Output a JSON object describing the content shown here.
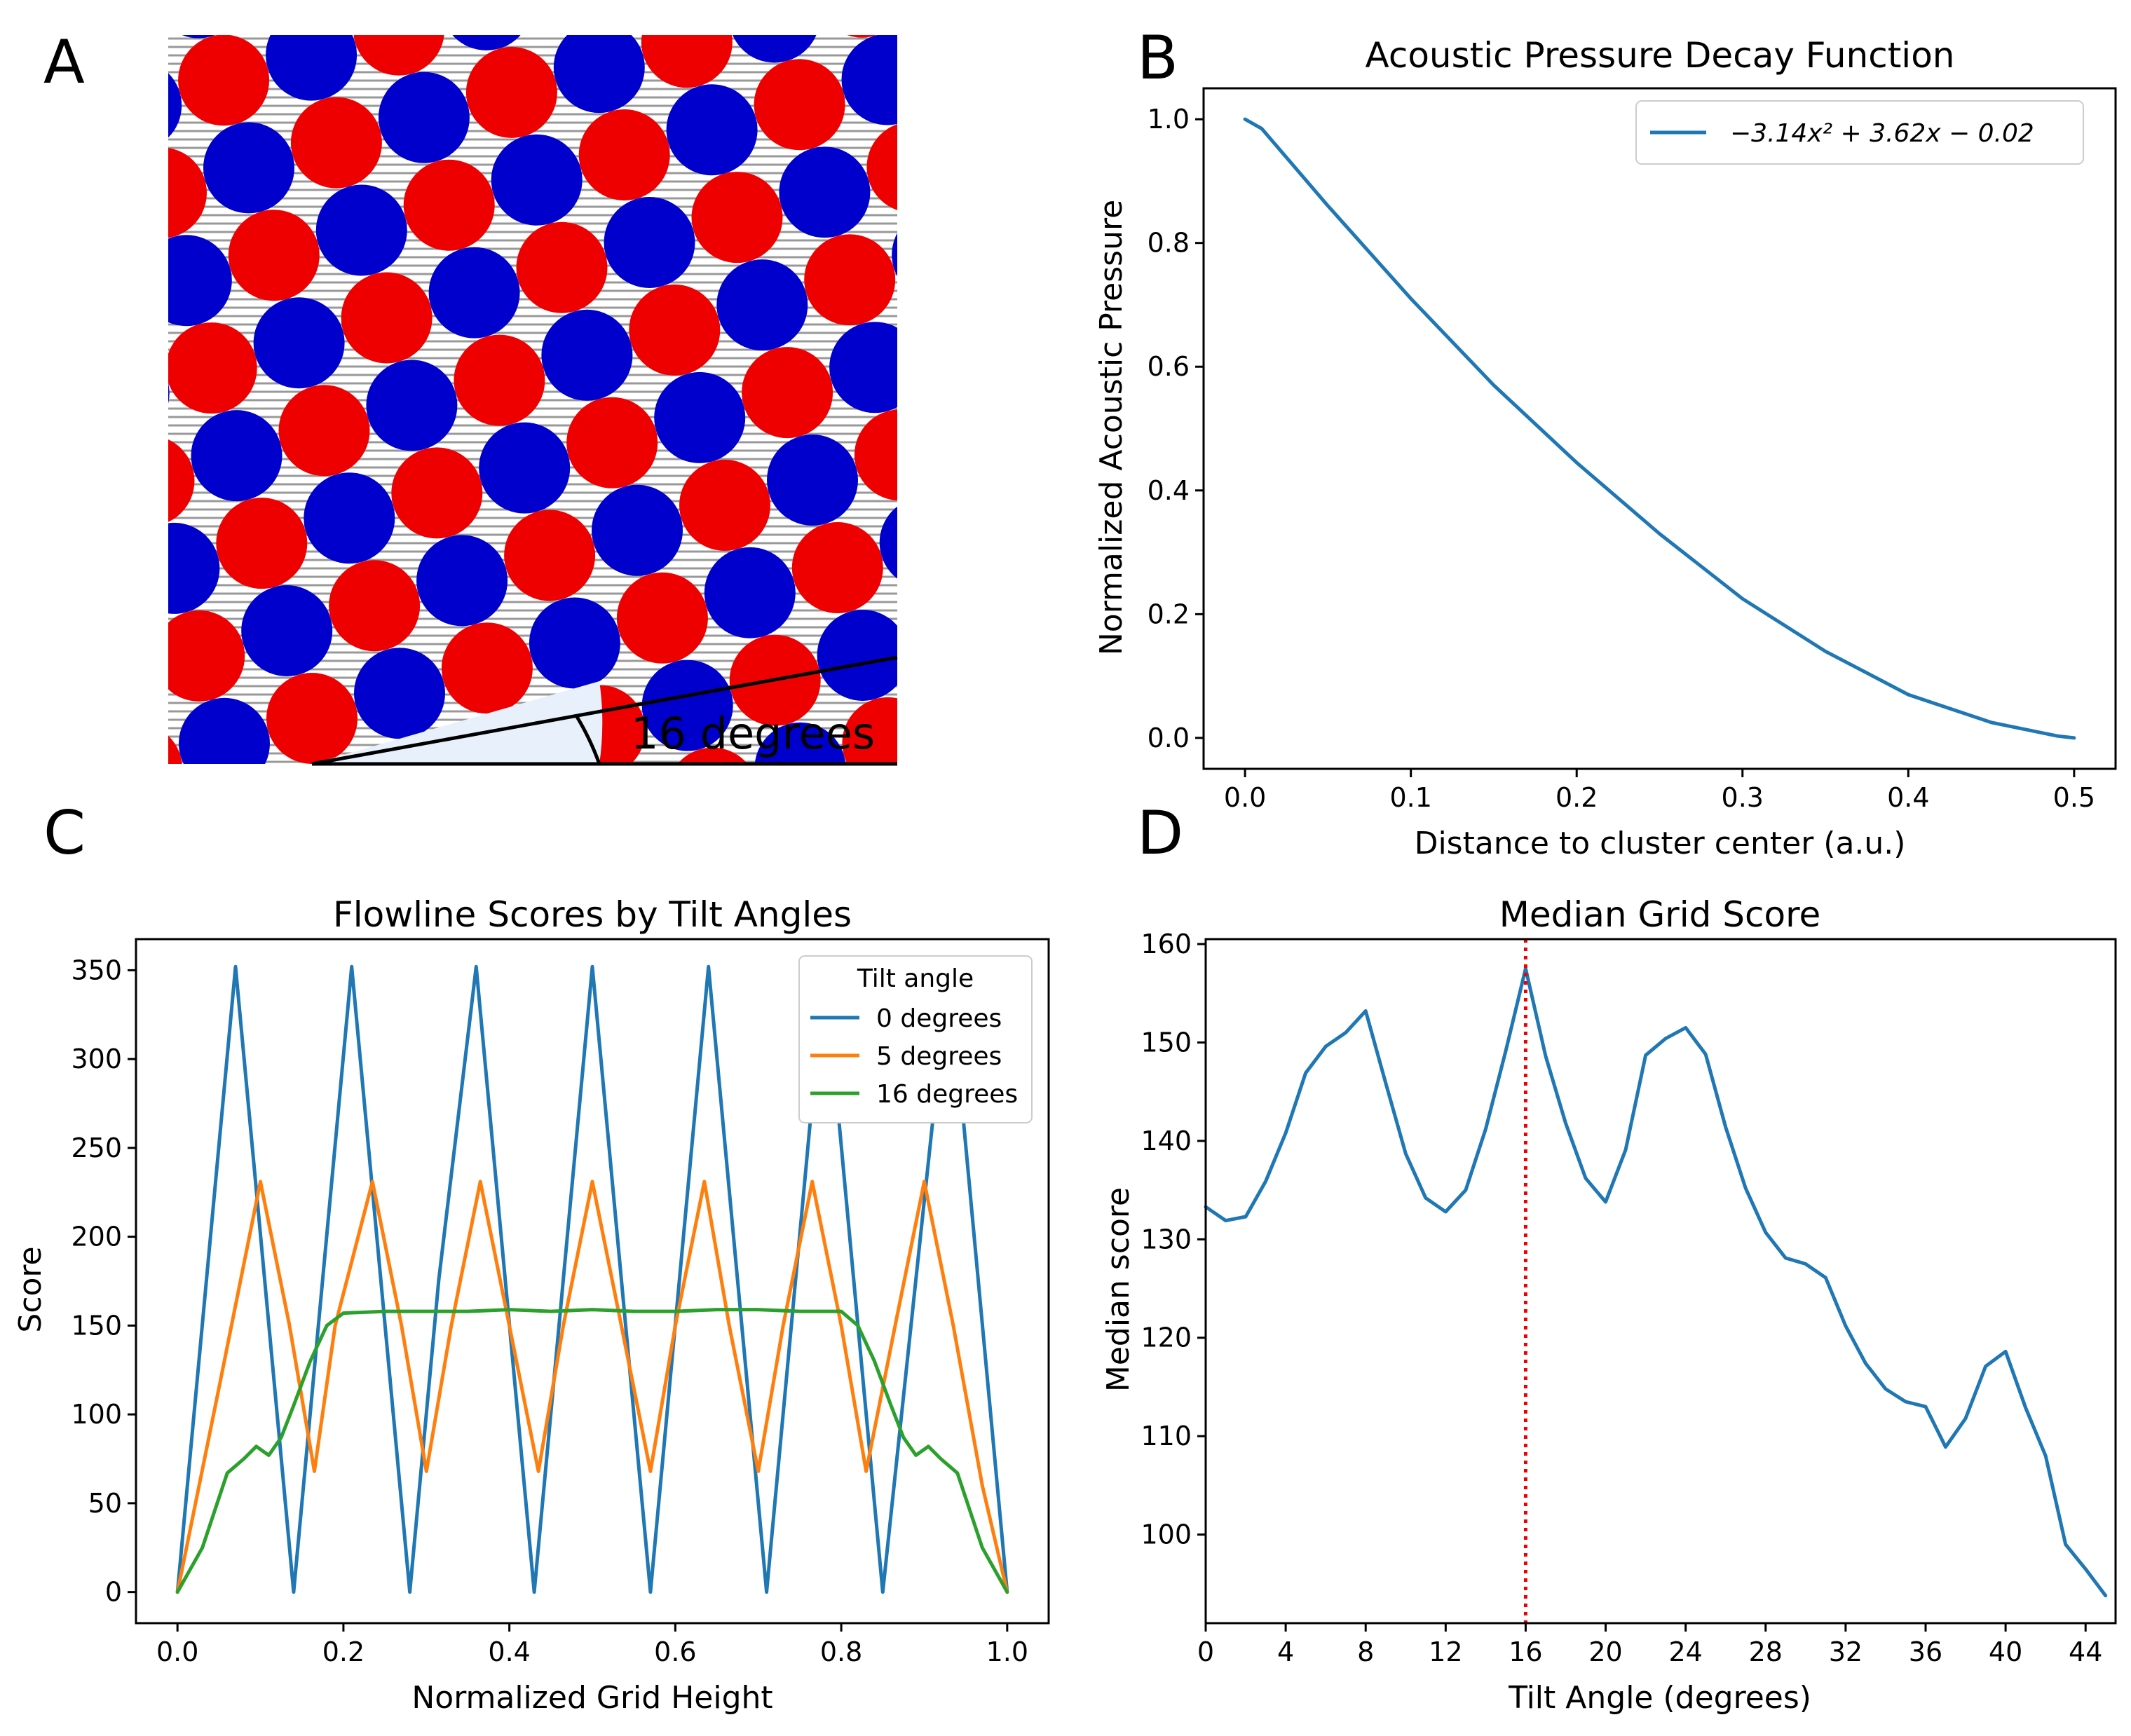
{
  "panels": {
    "A": {
      "letter": "A",
      "angle_label": "16 degrees",
      "angle_degrees": 16,
      "colors": {
        "red": "#ee0000",
        "blue": "#0000cc",
        "lines": "#999999",
        "wedge": "#e8f1fb"
      }
    },
    "B": {
      "letter": "B"
    },
    "C": {
      "letter": "C"
    },
    "D": {
      "letter": "D"
    }
  },
  "chart_data": [
    {
      "panel": "B",
      "type": "line",
      "title": "Acoustic Pressure Decay Function",
      "xlabel": "Distance to cluster center (a.u.)",
      "ylabel": "Normalized Acoustic Pressure",
      "xlim": [
        -0.025,
        0.525
      ],
      "ylim": [
        -0.05,
        1.05
      ],
      "xticks": [
        "0.0",
        "0.1",
        "0.2",
        "0.3",
        "0.4",
        "0.5"
      ],
      "yticks": [
        "0.0",
        "0.2",
        "0.4",
        "0.6",
        "0.8",
        "1.0"
      ],
      "legend": {
        "position": "top-right",
        "entries": [
          "−3.14x² + 3.62x − 0.02"
        ]
      },
      "series": [
        {
          "name": "−3.14x² + 3.62x − 0.02",
          "color": "#1f77b4",
          "x": [
            0.0,
            0.01,
            0.05,
            0.1,
            0.15,
            0.2,
            0.25,
            0.3,
            0.35,
            0.4,
            0.45,
            0.49,
            0.5
          ],
          "y": [
            1.0,
            0.985,
            0.86,
            0.71,
            0.57,
            0.445,
            0.33,
            0.225,
            0.14,
            0.07,
            0.025,
            0.003,
            0.0
          ]
        }
      ]
    },
    {
      "panel": "C",
      "type": "line",
      "title": "Flowline Scores by Tilt Angles",
      "xlabel": "Normalized Grid Height",
      "ylabel": "Score",
      "xlim": [
        -0.05,
        1.05
      ],
      "ylim": [
        -17.5,
        367.5
      ],
      "xticks": [
        "0.0",
        "0.2",
        "0.4",
        "0.6",
        "0.8",
        "1.0"
      ],
      "yticks": [
        "0",
        "50",
        "100",
        "150",
        "200",
        "250",
        "300",
        "350"
      ],
      "legend": {
        "position": "top-right",
        "title": "Tilt angle",
        "entries": [
          "0 degrees",
          "5 degrees",
          "16 degrees"
        ]
      },
      "series": [
        {
          "name": "0 degrees",
          "color": "#1f77b4",
          "x": [
            0.0,
            0.035,
            0.07,
            0.105,
            0.14,
            0.175,
            0.21,
            0.245,
            0.28,
            0.315,
            0.36,
            0.395,
            0.43,
            0.465,
            0.5,
            0.535,
            0.57,
            0.605,
            0.64,
            0.675,
            0.71,
            0.745,
            0.78,
            0.815,
            0.85,
            0.89,
            0.93,
            0.965,
            1.0
          ],
          "y": [
            0,
            176,
            352,
            176,
            0,
            176,
            352,
            176,
            0,
            176,
            352,
            176,
            0,
            176,
            352,
            176,
            0,
            176,
            352,
            176,
            0,
            176,
            352,
            176,
            0,
            176,
            352,
            176,
            0
          ]
        },
        {
          "name": "5 degrees",
          "color": "#ff7f0e",
          "x": [
            0.0,
            0.05,
            0.1,
            0.135,
            0.165,
            0.19,
            0.235,
            0.27,
            0.3,
            0.33,
            0.365,
            0.4,
            0.435,
            0.465,
            0.5,
            0.535,
            0.57,
            0.6,
            0.635,
            0.665,
            0.7,
            0.73,
            0.765,
            0.8,
            0.83,
            0.865,
            0.9,
            0.935,
            0.97,
            1.0
          ],
          "y": [
            0,
            115,
            231,
            150,
            68,
            150,
            231,
            150,
            68,
            150,
            231,
            150,
            68,
            150,
            231,
            150,
            68,
            150,
            231,
            150,
            68,
            150,
            231,
            150,
            68,
            150,
            231,
            150,
            60,
            0
          ]
        },
        {
          "name": "16 degrees",
          "color": "#2ca02c",
          "x": [
            0.0,
            0.03,
            0.06,
            0.08,
            0.095,
            0.11,
            0.125,
            0.14,
            0.16,
            0.18,
            0.2,
            0.25,
            0.3,
            0.35,
            0.4,
            0.45,
            0.5,
            0.55,
            0.6,
            0.65,
            0.7,
            0.75,
            0.8,
            0.82,
            0.84,
            0.86,
            0.875,
            0.89,
            0.905,
            0.92,
            0.94,
            0.97,
            1.0
          ],
          "y": [
            0,
            25,
            67,
            75,
            82,
            77,
            87,
            105,
            130,
            150,
            157,
            158,
            158,
            158,
            159,
            158,
            159,
            158,
            158,
            159,
            159,
            158,
            158,
            150,
            130,
            105,
            87,
            77,
            82,
            75,
            67,
            25,
            0
          ]
        }
      ]
    },
    {
      "panel": "D",
      "type": "line",
      "title": "Median Grid Score",
      "xlabel": "Tilt Angle (degrees)",
      "ylabel": "Median score",
      "xlim": [
        0,
        45.5
      ],
      "ylim": [
        91,
        160.5
      ],
      "xticks": [
        "0",
        "4",
        "8",
        "12",
        "16",
        "20",
        "24",
        "28",
        "32",
        "36",
        "40",
        "44"
      ],
      "yticks": [
        "100",
        "110",
        "120",
        "130",
        "140",
        "150",
        "160"
      ],
      "reference_line": {
        "x": 16,
        "color": "#ee0000",
        "style": "dotted"
      },
      "series": [
        {
          "color": "#1f77b4",
          "x": [
            0,
            1,
            2,
            3,
            4,
            5,
            6,
            7,
            8,
            9,
            10,
            11,
            12,
            13,
            14,
            15,
            16,
            17,
            18,
            19,
            20,
            21,
            22,
            23,
            24,
            25,
            26,
            27,
            28,
            29,
            30,
            31,
            32,
            33,
            34,
            35,
            36,
            37,
            38,
            39,
            40,
            41,
            42,
            43,
            44,
            45
          ],
          "y": [
            133.3,
            131.9,
            132.3,
            135.9,
            140.8,
            146.9,
            149.6,
            151.0,
            153.2,
            145.9,
            138.7,
            134.2,
            132.8,
            135.0,
            141.2,
            149.1,
            157.5,
            148.6,
            141.8,
            136.2,
            133.8,
            139.1,
            148.7,
            150.4,
            151.5,
            148.8,
            141.4,
            135.2,
            130.7,
            128.1,
            127.5,
            126.1,
            121.2,
            117.4,
            114.8,
            113.5,
            113.0,
            108.9,
            111.8,
            117.1,
            118.6,
            112.9,
            108.0,
            99.0,
            96.5,
            93.8
          ]
        }
      ]
    }
  ]
}
